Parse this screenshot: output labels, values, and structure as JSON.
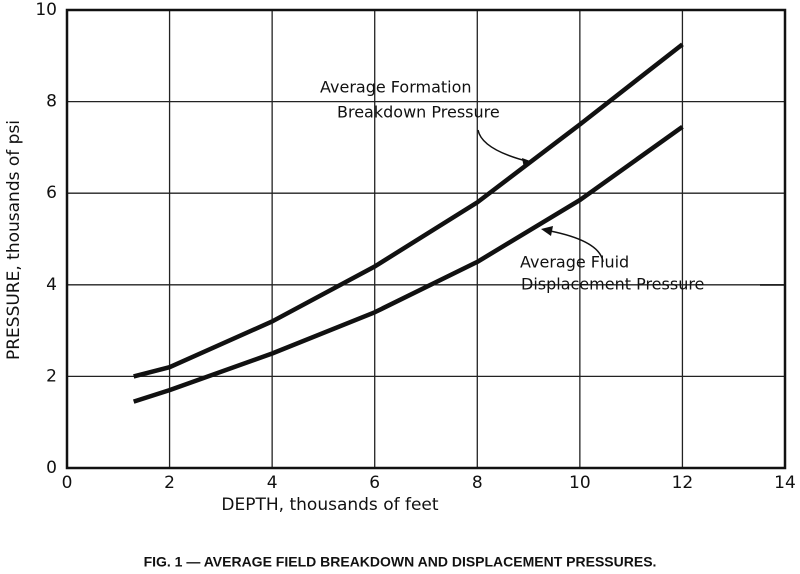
{
  "chart_data": {
    "type": "line",
    "title": "FIG. 1 — AVERAGE FIELD BREAKDOWN AND DISPLACEMENT PRESSURES.",
    "xlabel": "DEPTH,  thousands of feet",
    "ylabel": "PRESSURE,  thousands of psi",
    "x": [
      1.3,
      2,
      4,
      6,
      8,
      10,
      12
    ],
    "series": [
      {
        "color": "#111111",
        "values": [
          2.0,
          2.2,
          3.2,
          4.4,
          5.8,
          7.5,
          9.25
        ]
      },
      {
        "color": "#111111",
        "values": [
          1.45,
          1.7,
          2.5,
          3.4,
          4.5,
          5.85,
          7.45
        ]
      }
    ],
    "annotations": [
      "Average Formation",
      "Breakdown Pressure",
      "Average Fluid",
      "Displacement Pressure"
    ],
    "xlim": [
      0,
      14
    ],
    "xticks": [
      0,
      2,
      4,
      6,
      8,
      10,
      12,
      14
    ],
    "ylim": [
      0,
      10
    ],
    "yticks": [
      0,
      2,
      4,
      6,
      8,
      10
    ],
    "grid": true
  }
}
